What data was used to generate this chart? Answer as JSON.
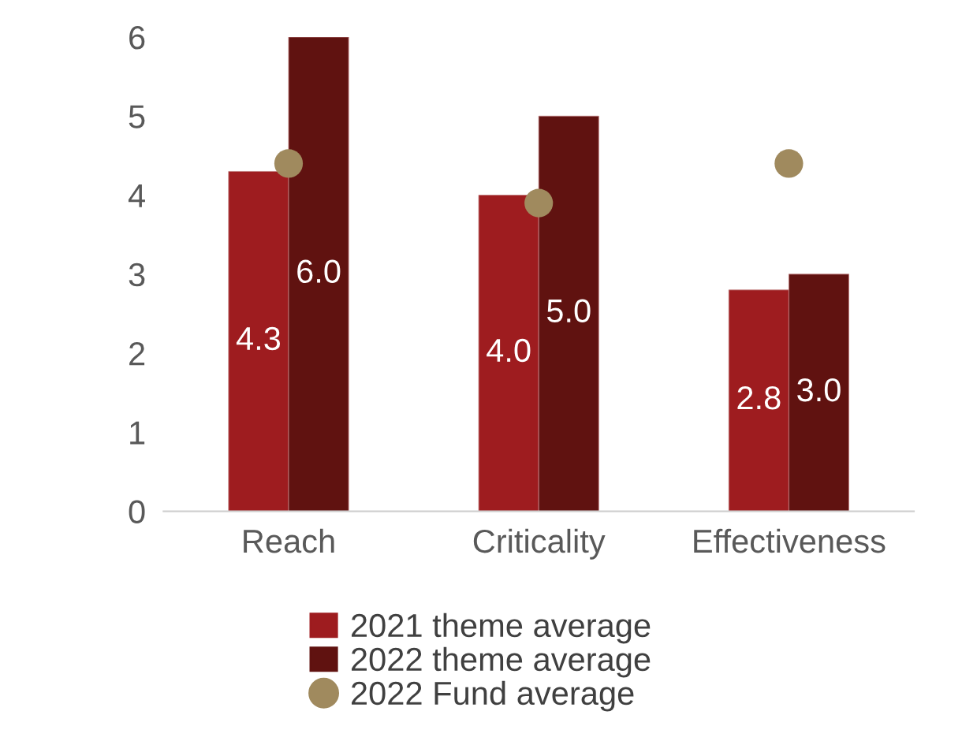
{
  "chart_data": {
    "type": "bar",
    "categories": [
      "Reach",
      "Criticality",
      "Effectiveness"
    ],
    "series": [
      {
        "name": "2021 theme average",
        "color": "#9e1c1f",
        "values": [
          4.3,
          4.0,
          2.8
        ],
        "value_labels": [
          "4.3",
          "4.0",
          "2.8"
        ]
      },
      {
        "name": "2022 theme average",
        "color": "#601210",
        "values": [
          6.0,
          5.0,
          3.0
        ],
        "value_labels": [
          "6.0",
          "5.0",
          "3.0"
        ]
      },
      {
        "name": "2022 Fund average",
        "type": "scatter",
        "color": "#a08a5e",
        "x": [
          "Reach",
          "Criticality",
          "Effectiveness"
        ],
        "values": [
          4.4,
          3.9,
          4.4
        ]
      }
    ],
    "ylim": [
      0,
      6
    ],
    "yticks": [
      0,
      1,
      2,
      3,
      4,
      5,
      6
    ],
    "grid": false,
    "legend": "bottom",
    "marker": "circle"
  }
}
